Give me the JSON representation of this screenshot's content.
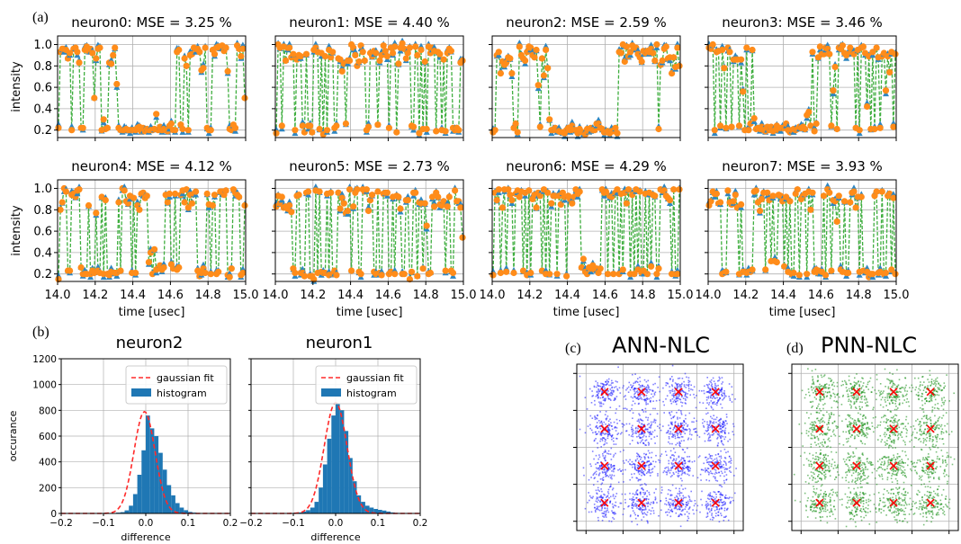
{
  "panel_labels": {
    "a": "(a)",
    "b": "(b)",
    "c": "(c)",
    "d": "(d)"
  },
  "colors": {
    "predicted": "#2e86c1",
    "target": "#ff8c1a",
    "trace": "#3fae3f",
    "hist": "#1f77b4",
    "fit": "#ff2a2a",
    "ann": "#1a1aff",
    "pnn": "#118c11",
    "marker": "#ff0000"
  },
  "chart_data": [
    {
      "type": "line",
      "panel": "(a)",
      "xlim": [
        14.0,
        15.0
      ],
      "ylim": [
        0.13,
        1.08
      ],
      "x_ticks": [
        "14.0",
        "14.2",
        "14.4",
        "14.6",
        "14.8",
        "15.0"
      ],
      "y_ticks": [
        "0.2",
        "0.4",
        "0.6",
        "0.8",
        "1.0"
      ],
      "xlabel": "time [usec]",
      "ylabel": "intensity",
      "grid": true,
      "subplots": [
        {
          "title": "neuron0: MSE = 3.25 %",
          "values": [
            0.22,
            0.93,
            0.96,
            0.96,
            0.95,
            0.87,
            0.92,
            0.2,
            0.96,
            0.97,
            0.93,
            0.83,
            0.22,
            0.22,
            0.95,
            0.98,
            0.94,
            0.96,
            0.92,
            0.5,
            0.87,
            0.96,
            0.97,
            0.2,
            0.3,
            0.21,
            0.22,
            0.83,
            0.82,
            0.9,
            0.97,
            0.63,
            0.22,
            0.2,
            0.2,
            0.2,
            0.21,
            0.2,
            0.2,
            0.2,
            0.2,
            0.2,
            0.22,
            0.23,
            0.19,
            0.22,
            0.19,
            0.21,
            0.2,
            0.2,
            0.2,
            0.21,
            0.35,
            0.2,
            0.23,
            0.2,
            0.21,
            0.2,
            0.19,
            0.24,
            0.26,
            0.2,
            0.2,
            0.93,
            0.95,
            0.25,
            0.21,
            0.87,
            0.8,
            0.2,
            0.9,
            0.91,
            0.97,
            0.96,
            0.96,
            0.93,
            0.76,
            0.78,
            0.97,
            0.22,
            0.2,
            0.2,
            0.95,
            0.91,
            0.97,
            0.98,
            0.97,
            0.99,
            0.94,
            0.97,
            0.75,
            0.21,
            0.2,
            0.25,
            0.22,
            0.99,
            0.96,
            0.89,
            0.96,
            0.5
          ]
        },
        {
          "title": "neuron1: MSE = 4.40 %",
          "values": [
            0.17,
            1.0,
            0.97,
            0.24,
            0.98,
            0.85,
            0.97,
            0.97,
            0.88,
            0.91,
            0.2,
            0.86,
            0.9,
            0.89,
            0.24,
            0.18,
            0.91,
            0.24,
            0.24,
            0.18,
            0.95,
            0.97,
            0.93,
            0.21,
            0.92,
            0.16,
            0.89,
            0.2,
            0.95,
            0.88,
            0.93,
            0.22,
            0.24,
            0.87,
            0.86,
            0.75,
            0.82,
            0.26,
            0.85,
            0.85,
            1.0,
            0.97,
            0.9,
            0.8,
            0.84,
            0.99,
            0.93,
            0.85,
            0.2,
            0.23,
            0.92,
            0.89,
            0.94,
            0.92,
            0.25,
            0.85,
            0.9,
            0.99,
            0.94,
            0.89,
            0.22,
            0.97,
            0.92,
            0.98,
            0.18,
            0.82,
            0.97,
            1.01,
            0.96,
            0.87,
            0.92,
            0.97,
            0.24,
            0.23,
            0.98,
            0.9,
            0.17,
            0.95,
            0.21,
            0.84,
            0.21,
            0.98,
            0.92,
            0.97,
            0.94,
            0.19,
            0.93,
            0.91,
            0.2,
            0.86,
            0.19,
            0.92,
            0.96,
            0.94,
            0.22,
            0.2,
            0.22,
            0.2,
            0.83,
            0.85
          ]
        },
        {
          "title": "neuron2: MSE = 2.59 %",
          "values": [
            0.18,
            0.2,
            0.9,
            0.93,
            0.73,
            0.84,
            0.81,
            0.83,
            0.88,
            0.87,
            0.73,
            0.22,
            0.26,
            0.18,
            0.98,
            0.9,
            0.87,
            0.85,
            0.93,
            0.98,
            0.97,
            0.9,
            0.88,
            0.95,
            0.62,
            0.23,
            0.87,
            0.71,
            0.95,
            0.78,
            0.3,
            0.2,
            0.2,
            0.22,
            0.2,
            0.19,
            0.18,
            0.18,
            0.17,
            0.2,
            0.22,
            0.2,
            0.24,
            0.2,
            0.2,
            0.17,
            0.21,
            0.18,
            0.18,
            0.16,
            0.21,
            0.19,
            0.22,
            0.2,
            0.2,
            0.26,
            0.26,
            0.22,
            0.21,
            0.18,
            0.18,
            0.19,
            0.17,
            0.19,
            0.19,
            0.22,
            0.17,
            0.93,
            0.92,
            1.0,
            0.84,
            0.98,
            0.89,
            0.93,
            0.99,
            0.96,
            0.97,
            0.91,
            0.88,
            0.84,
            0.94,
            0.92,
            0.94,
            0.93,
            0.96,
            0.92,
            0.85,
            1.0,
            0.21,
            0.81,
            0.85,
            0.96,
            0.98,
            0.87,
            0.88,
            0.73,
            0.88,
            0.79,
            0.97,
            0.8
          ]
        },
        {
          "title": "neuron3: MSE = 3.46 %",
          "values": [
            0.97,
            0.96,
            1.0,
            0.2,
            0.93,
            0.94,
            0.24,
            0.95,
            0.78,
            0.22,
            0.97,
            0.93,
            0.23,
            0.86,
            0.86,
            0.86,
            0.24,
            0.86,
            0.56,
            0.2,
            0.97,
            0.2,
            0.26,
            0.95,
            0.31,
            0.21,
            0.22,
            0.21,
            0.23,
            0.2,
            0.19,
            0.23,
            0.2,
            0.23,
            0.19,
            0.2,
            0.24,
            0.2,
            0.22,
            0.22,
            0.22,
            0.26,
            0.2,
            0.18,
            0.2,
            0.21,
            0.2,
            0.21,
            0.23,
            0.22,
            0.23,
            0.21,
            0.34,
            0.37,
            0.24,
            0.93,
            0.19,
            0.26,
            0.88,
            0.98,
            0.91,
            0.91,
            0.97,
            0.96,
            0.91,
            0.24,
            0.57,
            0.79,
            0.21,
            0.97,
            0.96,
            0.99,
            0.92,
            0.9,
            0.91,
            0.97,
            0.93,
            0.91,
            0.22,
            0.95,
            0.2,
            0.97,
            0.98,
            0.92,
            0.42,
            0.89,
            0.21,
            0.93,
            0.21,
            0.97,
            0.88,
            0.22,
            0.89,
            0.92,
            0.57,
            0.89,
            0.74,
            0.93,
            0.23,
            0.91
          ]
        },
        {
          "title": "neuron4: MSE = 4.12 %",
          "values": [
            0.15,
            0.8,
            0.87,
            1.0,
            0.97,
            0.23,
            0.23,
            0.94,
            0.95,
            0.92,
            0.98,
            0.99,
            0.26,
            0.2,
            0.2,
            0.2,
            0.84,
            0.2,
            0.23,
            0.21,
            0.77,
            0.23,
            0.21,
            0.92,
            0.2,
            0.89,
            0.2,
            0.19,
            0.22,
            0.21,
            0.21,
            0.21,
            0.87,
            0.23,
            1.0,
            0.98,
            0.88,
            0.86,
            0.93,
            0.21,
            0.91,
            0.21,
            0.84,
            0.8,
            0.95,
            0.96,
            0.91,
            0.93,
            0.31,
            0.4,
            0.2,
            0.43,
            0.24,
            0.25,
            0.28,
            0.24,
            0.26,
            0.94,
            0.87,
            0.95,
            0.29,
            0.25,
            0.95,
            0.24,
            0.26,
            0.94,
            0.98,
            0.87,
            0.99,
            0.82,
            0.94,
            0.86,
            0.95,
            0.97,
            0.23,
            0.18,
            0.21,
            0.25,
            0.21,
            0.95,
            0.85,
            0.2,
            0.84,
            0.94,
            0.2,
            0.22,
            0.97,
            0.97,
            0.94,
            0.98,
            0.19,
            0.17,
            0.25,
            0.99,
            0.96,
            0.94,
            0.92,
            0.19,
            0.21,
            0.84
          ]
        },
        {
          "title": "neuron5: MSE = 2.73 %",
          "values": [
            0.83,
            0.93,
            0.86,
            0.92,
            0.82,
            0.83,
            0.81,
            0.84,
            0.78,
            0.25,
            0.21,
            0.93,
            0.94,
            0.21,
            0.21,
            0.18,
            0.96,
            0.97,
            0.18,
            0.18,
            0.15,
            0.98,
            0.21,
            0.97,
            0.22,
            0.21,
            0.21,
            0.95,
            0.19,
            0.96,
            0.2,
            0.23,
            0.19,
            0.96,
            0.81,
            0.91,
            0.86,
            0.77,
            0.79,
            0.99,
            0.23,
            0.83,
            0.96,
            0.99,
            0.22,
            0.2,
            0.99,
            0.97,
            0.99,
            0.79,
            0.89,
            0.94,
            0.22,
            0.2,
            0.97,
            0.21,
            0.19,
            0.95,
            0.96,
            0.96,
            0.2,
            0.22,
            0.92,
            0.2,
            0.93,
            0.92,
            0.81,
            0.2,
            0.2,
            0.89,
            0.89,
            0.15,
            0.22,
            0.96,
            0.96,
            0.18,
            0.87,
            0.86,
            0.25,
            0.86,
            0.65,
            0.2,
            0.21,
            0.92,
            0.83,
            0.96,
            0.92,
            0.85,
            0.84,
            0.88,
            0.23,
            0.83,
            0.92,
            0.23,
            0.21,
            0.98,
            0.88,
            0.88,
            0.82,
            0.54
          ]
        },
        {
          "title": "neuron6: MSE = 4.29 %",
          "values": [
            0.19,
            0.96,
            0.89,
            0.99,
            0.21,
            0.82,
            0.99,
            0.22,
            0.99,
            0.94,
            0.89,
            0.21,
            0.95,
            0.98,
            0.92,
            0.97,
            0.23,
            0.96,
            0.19,
            0.98,
            0.21,
            0.9,
            0.94,
            0.82,
            0.96,
            0.93,
            0.23,
            0.99,
            0.2,
            0.96,
            0.2,
            0.86,
            0.93,
            0.93,
            0.2,
            0.93,
            0.85,
            0.96,
            0.92,
            0.18,
            0.93,
            0.9,
            0.86,
            0.92,
            0.99,
            0.95,
            0.97,
            0.26,
            0.34,
            0.22,
            0.2,
            0.26,
            0.25,
            0.28,
            0.24,
            0.25,
            0.21,
            0.25,
            0.99,
            0.96,
            0.97,
            0.2,
            0.93,
            0.92,
            0.2,
            0.96,
            0.99,
            0.2,
            0.95,
            0.24,
            0.96,
            0.86,
            0.99,
            0.2,
            0.94,
            0.2,
            0.99,
            0.24,
            0.97,
            0.21,
            0.23,
            0.95,
            0.2,
            0.96,
            0.27,
            0.94,
            0.93,
            0.2,
            0.25,
            0.99,
            0.98,
            0.98,
            0.93,
            0.91,
            0.89,
            0.2,
            0.99,
            0.2,
            0.2,
            0.99
          ]
        },
        {
          "title": "neuron7: MSE = 3.93 %",
          "values": [
            0.84,
            0.88,
            0.97,
            0.95,
            0.95,
            0.86,
            0.87,
            0.2,
            0.21,
            0.22,
            0.98,
            0.87,
            0.85,
            0.88,
            0.94,
            0.82,
            0.2,
            0.85,
            0.22,
            0.22,
            0.21,
            0.22,
            0.22,
            0.24,
            0.97,
            0.98,
            0.87,
            0.79,
            0.9,
            0.96,
            0.24,
            0.96,
            0.89,
            0.32,
            0.93,
            0.32,
            0.31,
            0.94,
            0.93,
            0.88,
            0.27,
            0.92,
            0.22,
            0.88,
            0.2,
            0.21,
            0.95,
            0.99,
            0.19,
            0.9,
            0.93,
            0.95,
            0.2,
            0.97,
            0.8,
            0.96,
            0.22,
            0.24,
            0.21,
            0.23,
            0.22,
            0.93,
            0.19,
            0.99,
            0.96,
            0.23,
            0.89,
            0.88,
            0.69,
            0.93,
            0.24,
            0.22,
            0.88,
            0.21,
            0.21,
            0.87,
            0.96,
            0.97,
            0.82,
            0.92,
            0.22,
            0.92,
            0.23,
            0.23,
            0.22,
            0.17,
            0.2,
            0.2,
            0.93,
            0.97,
            0.21,
            0.22,
            0.97,
            0.2,
            0.21,
            0.93,
            0.95,
            0.24,
            0.91,
            0.2
          ]
        }
      ]
    },
    {
      "type": "bar",
      "panel": "(b)",
      "xlim": [
        -0.2,
        0.2
      ],
      "ylim": [
        0,
        1200
      ],
      "x_ticks": [
        "−0.2",
        "−0.1",
        "0.0",
        "0.1",
        "0.2"
      ],
      "y_ticks": [
        "0",
        "200",
        "400",
        "600",
        "800",
        "1000",
        "1200"
      ],
      "xlabel": "difference",
      "ylabel": "occurance",
      "legend": [
        "gaussian fit",
        "histogram"
      ],
      "legend_position": "top-right",
      "grid": true,
      "bin_edges": [
        -0.1,
        -0.09,
        -0.08,
        -0.07,
        -0.06,
        -0.05,
        -0.04,
        -0.03,
        -0.02,
        -0.01,
        0.0,
        0.01,
        0.02,
        0.03,
        0.04,
        0.05,
        0.06,
        0.07,
        0.08,
        0.09,
        0.1,
        0.11,
        0.12,
        0.13,
        0.14,
        0.15
      ],
      "subplots": [
        {
          "title": "neuron2",
          "counts": [
            1,
            2,
            3,
            6,
            10,
            24,
            60,
            150,
            300,
            490,
            760,
            660,
            600,
            470,
            340,
            220,
            140,
            80,
            45,
            25,
            12,
            6,
            3,
            2,
            1
          ],
          "fit_peak": 790,
          "fit_center": -0.003,
          "fit_sigma": 0.025
        },
        {
          "title": "neuron1",
          "counts": [
            5,
            8,
            15,
            25,
            45,
            90,
            200,
            380,
            580,
            760,
            850,
            800,
            640,
            430,
            250,
            140,
            90,
            60,
            45,
            35,
            28,
            22,
            15,
            8,
            4
          ],
          "fit_peak": 860,
          "fit_center": 0.0,
          "fit_sigma": 0.027
        }
      ]
    },
    {
      "type": "scatter",
      "panel": "(c)",
      "title": "ANN-NLC",
      "grid": true,
      "cluster_centers": [
        [
          -3,
          3
        ],
        [
          -1,
          3
        ],
        [
          1,
          3
        ],
        [
          3,
          3
        ],
        [
          -3,
          1
        ],
        [
          -1,
          1
        ],
        [
          1,
          1
        ],
        [
          3,
          1
        ],
        [
          -3,
          -1
        ],
        [
          -1,
          -1
        ],
        [
          1,
          -1
        ],
        [
          3,
          -1
        ],
        [
          -3,
          -3
        ],
        [
          -1,
          -3
        ],
        [
          1,
          -3
        ],
        [
          3,
          -3
        ]
      ],
      "lim": [
        -4.5,
        4.5
      ]
    },
    {
      "type": "scatter",
      "panel": "(d)",
      "title": "PNN-NLC",
      "grid": true,
      "cluster_centers": [
        [
          -3,
          3
        ],
        [
          -1,
          3
        ],
        [
          1,
          3
        ],
        [
          3,
          3
        ],
        [
          -3,
          1
        ],
        [
          -1,
          1
        ],
        [
          1,
          1
        ],
        [
          3,
          1
        ],
        [
          -3,
          -1
        ],
        [
          -1,
          -1
        ],
        [
          1,
          -1
        ],
        [
          3,
          -1
        ],
        [
          -3,
          -3
        ],
        [
          -1,
          -3
        ],
        [
          1,
          -3
        ],
        [
          3,
          -3
        ]
      ],
      "lim": [
        -4.5,
        4.5
      ]
    }
  ]
}
